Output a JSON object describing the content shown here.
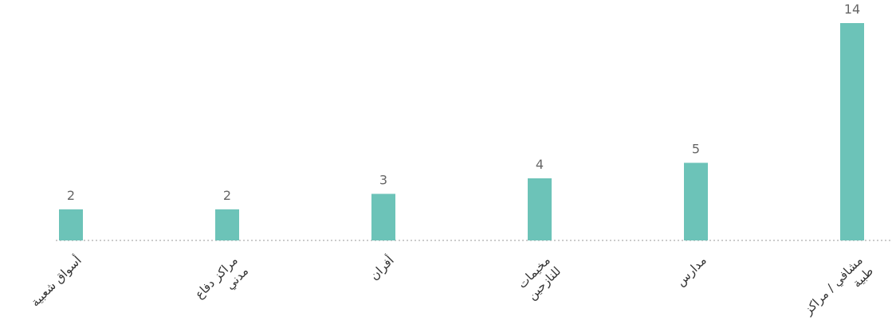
{
  "chart_data": {
    "type": "bar",
    "categories": [
      "أسواق شعبية",
      "مراكز دفاع مدني",
      "أفران",
      "مخيمات للنازحين",
      "مدارس",
      "مشافي / مراكز طبية"
    ],
    "values": [
      2,
      2,
      3,
      4,
      5,
      14
    ],
    "color": "#6cc3b8",
    "ylim": [
      0,
      14
    ]
  }
}
